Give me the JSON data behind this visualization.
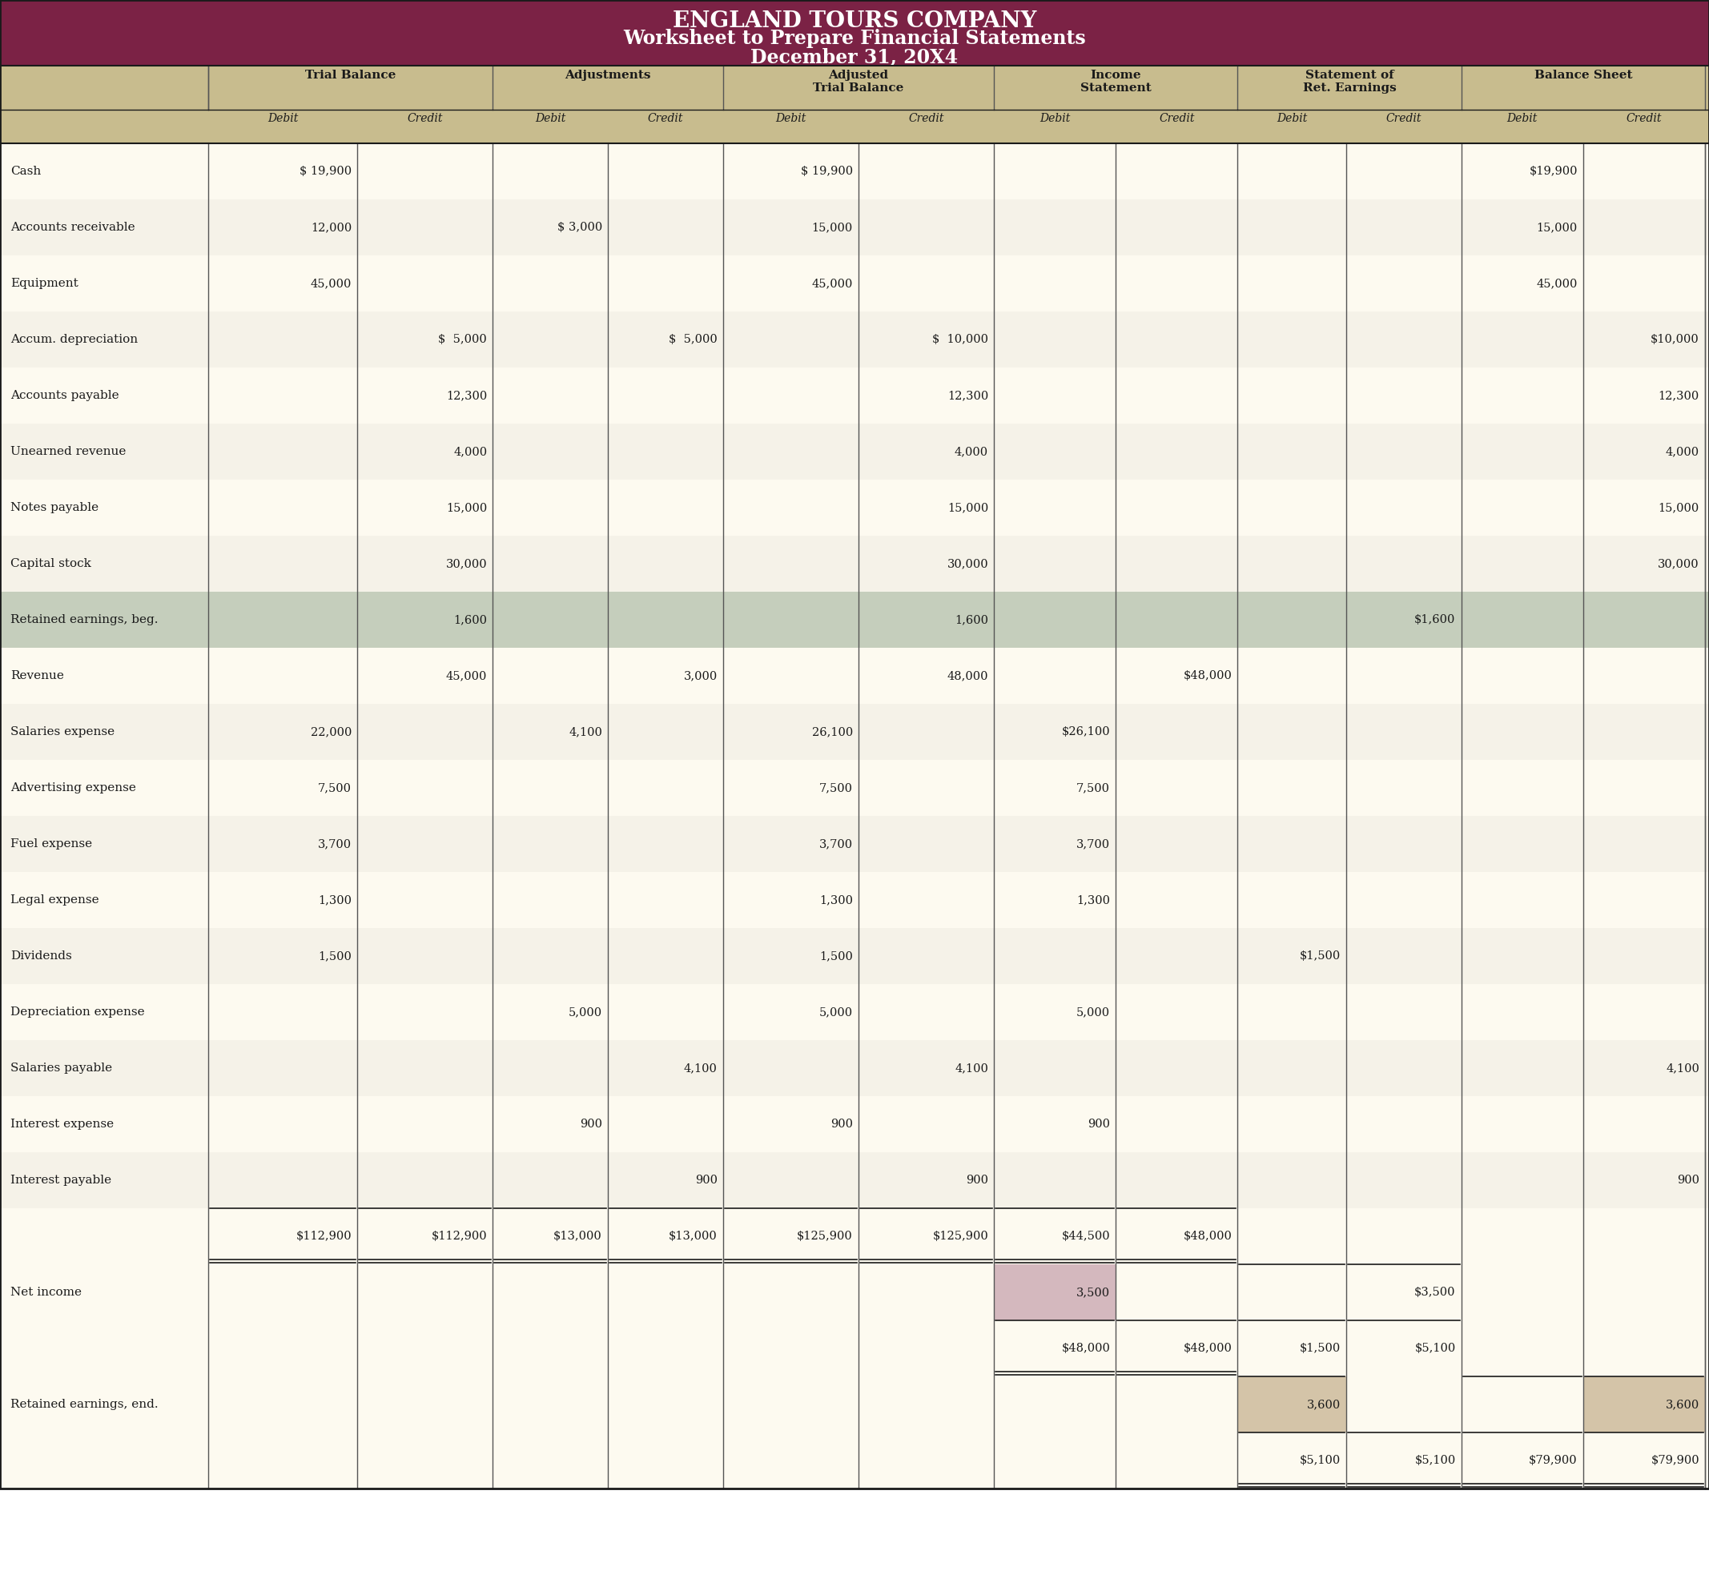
{
  "title_line1": "ENGLAND TOURS COMPANY",
  "title_line2": "Worksheet to Prepare Financial Statements",
  "title_line3": "December 31, 20X4",
  "header_bg": "#7B2245",
  "header_text_color": "#FFFFFF",
  "col_header_bg": "#C8BC8E",
  "col_header_text_color": "#1a1a1a",
  "body_bg_odd": "#FDFAF0",
  "body_bg_even": "#F5F2E8",
  "retained_bg": "#C5CEBC",
  "net_income_debit_bg": "#D4B8BE",
  "retained_end_credit_bg": "#D4C4A8",
  "col_groups": [
    "Trial Balance",
    "Adjustments",
    "Adjusted\nTrial Balance",
    "Income\nStatement",
    "Statement of\nRet. Earnings",
    "Balance Sheet"
  ],
  "sub_cols": [
    "Debit",
    "Credit",
    "Debit",
    "Credit",
    "Debit",
    "Credit",
    "Debit",
    "Credit",
    "Debit",
    "Credit",
    "Debit",
    "Credit"
  ],
  "rows": [
    {
      "label": "Cash",
      "tb_d": "$ 19,900",
      "tb_c": "",
      "adj_d": "",
      "adj_c": "",
      "atb_d": "$ 19,900",
      "atb_c": "",
      "is_d": "",
      "is_c": "",
      "re_d": "",
      "re_c": "",
      "bs_d": "$19,900",
      "bs_c": "",
      "bg": "odd",
      "underline_d": false,
      "underline_c": false
    },
    {
      "label": "Accounts receivable",
      "tb_d": "12,000",
      "tb_c": "",
      "adj_d": "$ 3,000",
      "adj_c": "",
      "atb_d": "15,000",
      "atb_c": "",
      "is_d": "",
      "is_c": "",
      "re_d": "",
      "re_c": "",
      "bs_d": "15,000",
      "bs_c": "",
      "bg": "even",
      "underline_d": false,
      "underline_c": false
    },
    {
      "label": "Equipment",
      "tb_d": "45,000",
      "tb_c": "",
      "adj_d": "",
      "adj_c": "",
      "atb_d": "45,000",
      "atb_c": "",
      "is_d": "",
      "is_c": "",
      "re_d": "",
      "re_c": "",
      "bs_d": "45,000",
      "bs_c": "",
      "bg": "odd",
      "underline_d": false,
      "underline_c": false
    },
    {
      "label": "Accum. depreciation",
      "tb_d": "",
      "tb_c": "$  5,000",
      "adj_d": "",
      "adj_c": "$  5,000",
      "atb_d": "",
      "atb_c": "$  10,000",
      "is_d": "",
      "is_c": "",
      "re_d": "",
      "re_c": "",
      "bs_d": "",
      "bs_c": "$10,000",
      "bg": "even",
      "underline_d": false,
      "underline_c": false
    },
    {
      "label": "Accounts payable",
      "tb_d": "",
      "tb_c": "12,300",
      "adj_d": "",
      "adj_c": "",
      "atb_d": "",
      "atb_c": "12,300",
      "is_d": "",
      "is_c": "",
      "re_d": "",
      "re_c": "",
      "bs_d": "",
      "bs_c": "12,300",
      "bg": "odd",
      "underline_d": false,
      "underline_c": false
    },
    {
      "label": "Unearned revenue",
      "tb_d": "",
      "tb_c": "4,000",
      "adj_d": "",
      "adj_c": "",
      "atb_d": "",
      "atb_c": "4,000",
      "is_d": "",
      "is_c": "",
      "re_d": "",
      "re_c": "",
      "bs_d": "",
      "bs_c": "4,000",
      "bg": "even",
      "underline_d": false,
      "underline_c": false
    },
    {
      "label": "Notes payable",
      "tb_d": "",
      "tb_c": "15,000",
      "adj_d": "",
      "adj_c": "",
      "atb_d": "",
      "atb_c": "15,000",
      "is_d": "",
      "is_c": "",
      "re_d": "",
      "re_c": "",
      "bs_d": "",
      "bs_c": "15,000",
      "bg": "odd",
      "underline_d": false,
      "underline_c": false
    },
    {
      "label": "Capital stock",
      "tb_d": "",
      "tb_c": "30,000",
      "adj_d": "",
      "adj_c": "",
      "atb_d": "",
      "atb_c": "30,000",
      "is_d": "",
      "is_c": "",
      "re_d": "",
      "re_c": "",
      "bs_d": "",
      "bs_c": "30,000",
      "bg": "even",
      "underline_d": false,
      "underline_c": false
    },
    {
      "label": "Retained earnings, beg.",
      "tb_d": "",
      "tb_c": "1,600",
      "adj_d": "",
      "adj_c": "",
      "atb_d": "",
      "atb_c": "1,600",
      "is_d": "",
      "is_c": "",
      "re_d": "",
      "re_c": "$1,600",
      "bs_d": "",
      "bs_c": "",
      "bg": "retained",
      "underline_d": false,
      "underline_c": false
    },
    {
      "label": "Revenue",
      "tb_d": "",
      "tb_c": "45,000",
      "adj_d": "",
      "adj_c": "3,000",
      "atb_d": "",
      "atb_c": "48,000",
      "is_d": "",
      "is_c": "$48,000",
      "re_d": "",
      "re_c": "",
      "bs_d": "",
      "bs_c": "",
      "bg": "odd",
      "underline_d": false,
      "underline_c": false
    },
    {
      "label": "Salaries expense",
      "tb_d": "22,000",
      "tb_c": "",
      "adj_d": "4,100",
      "adj_c": "",
      "atb_d": "26,100",
      "atb_c": "",
      "is_d": "$26,100",
      "is_c": "",
      "re_d": "",
      "re_c": "",
      "bs_d": "",
      "bs_c": "",
      "bg": "even",
      "underline_d": false,
      "underline_c": false
    },
    {
      "label": "Advertising expense",
      "tb_d": "7,500",
      "tb_c": "",
      "adj_d": "",
      "adj_c": "",
      "atb_d": "7,500",
      "atb_c": "",
      "is_d": "7,500",
      "is_c": "",
      "re_d": "",
      "re_c": "",
      "bs_d": "",
      "bs_c": "",
      "bg": "odd",
      "underline_d": false,
      "underline_c": false
    },
    {
      "label": "Fuel expense",
      "tb_d": "3,700",
      "tb_c": "",
      "adj_d": "",
      "adj_c": "",
      "atb_d": "3,700",
      "atb_c": "",
      "is_d": "3,700",
      "is_c": "",
      "re_d": "",
      "re_c": "",
      "bs_d": "",
      "bs_c": "",
      "bg": "even",
      "underline_d": false,
      "underline_c": false
    },
    {
      "label": "Legal expense",
      "tb_d": "1,300",
      "tb_c": "",
      "adj_d": "",
      "adj_c": "",
      "atb_d": "1,300",
      "atb_c": "",
      "is_d": "1,300",
      "is_c": "",
      "re_d": "",
      "re_c": "",
      "bs_d": "",
      "bs_c": "",
      "bg": "odd",
      "underline_d": false,
      "underline_c": false
    },
    {
      "label": "Dividends",
      "tb_d": "1,500",
      "tb_c": "",
      "adj_d": "",
      "adj_c": "",
      "atb_d": "1,500",
      "atb_c": "",
      "is_d": "",
      "is_c": "",
      "re_d": "$1,500",
      "re_c": "",
      "bs_d": "",
      "bs_c": "",
      "bg": "even",
      "underline_d": false,
      "underline_c": false
    },
    {
      "label": "Depreciation expense",
      "tb_d": "",
      "tb_c": "",
      "adj_d": "5,000",
      "adj_c": "",
      "atb_d": "5,000",
      "atb_c": "",
      "is_d": "5,000",
      "is_c": "",
      "re_d": "",
      "re_c": "",
      "bs_d": "",
      "bs_c": "",
      "bg": "odd",
      "underline_d": false,
      "underline_c": false
    },
    {
      "label": "Salaries payable",
      "tb_d": "",
      "tb_c": "",
      "adj_d": "",
      "adj_c": "4,100",
      "atb_d": "",
      "atb_c": "4,100",
      "is_d": "",
      "is_c": "",
      "re_d": "",
      "re_c": "",
      "bs_d": "",
      "bs_c": "4,100",
      "bg": "even",
      "underline_d": false,
      "underline_c": false
    },
    {
      "label": "Interest expense",
      "tb_d": "",
      "tb_c": "",
      "adj_d": "900",
      "adj_c": "",
      "atb_d": "900",
      "atb_c": "",
      "is_d": "900",
      "is_c": "",
      "re_d": "",
      "re_c": "",
      "bs_d": "",
      "bs_c": "",
      "bg": "odd",
      "underline_d": false,
      "underline_c": false
    },
    {
      "label": "Interest payable",
      "tb_d": "",
      "tb_c": "",
      "adj_d": "",
      "adj_c": "900",
      "atb_d": "",
      "atb_c": "900",
      "is_d": "",
      "is_c": "",
      "re_d": "",
      "re_c": "",
      "bs_d": "",
      "bs_c": "900",
      "bg": "even",
      "underline_d": false,
      "underline_c": false
    }
  ],
  "totals_row": {
    "label": "",
    "tb_d": "$112,900",
    "tb_c": "$112,900",
    "adj_d": "$13,000",
    "adj_c": "$13,000",
    "atb_d": "$125,900",
    "atb_c": "$125,900",
    "is_d": "$44,500",
    "is_c": "$48,000",
    "re_d": "",
    "re_c": "",
    "bs_d": "",
    "bs_c": ""
  },
  "net_income_row": {
    "label": "Net income",
    "is_d": "3,500",
    "is_c": "",
    "re_d": "",
    "re_c": "$3,500",
    "bs_d": "",
    "bs_c": ""
  },
  "totals2_row": {
    "is_d": "$48,000",
    "is_c": "$48,000",
    "re_d": "$1,500",
    "re_c": "$5,100",
    "bs_d": "",
    "bs_c": ""
  },
  "retained_end_row": {
    "label": "Retained earnings, end.",
    "re_d": "3,600",
    "re_c": "",
    "bs_d": "",
    "bs_c": "3,600"
  },
  "totals3_row": {
    "re_d": "$5,100",
    "re_c": "$5,100",
    "bs_d": "$79,900",
    "bs_c": "$79,900"
  }
}
